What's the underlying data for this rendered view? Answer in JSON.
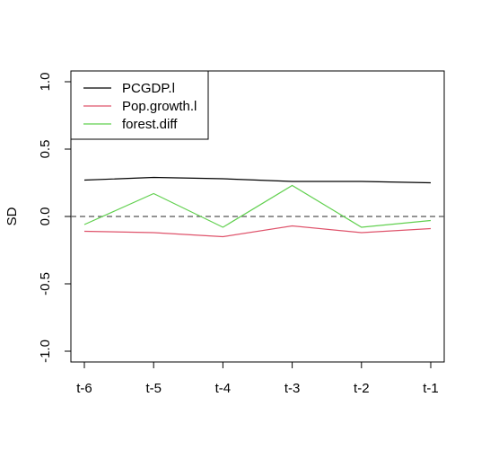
{
  "chart_data": {
    "type": "line",
    "title": "",
    "xlabel": "",
    "ylabel": "SD",
    "categories": [
      "t-6",
      "t-5",
      "t-4",
      "t-3",
      "t-2",
      "t-1"
    ],
    "ylim": [
      -1.08,
      1.08
    ],
    "yticks": [
      "-1.0",
      "-0.5",
      "0.0",
      "0.5",
      "1.0"
    ],
    "ytick_values": [
      -1.0,
      -0.5,
      0.0,
      0.5,
      1.0
    ],
    "reference_line": {
      "y": 0.0,
      "style": "dashed",
      "color": "#555555"
    },
    "grid": false,
    "legend_position": "top-left",
    "series": [
      {
        "name": "PCGDP.l",
        "color": "#000000",
        "values": [
          0.27,
          0.29,
          0.28,
          0.26,
          0.26,
          0.25
        ]
      },
      {
        "name": "Pop.growth.l",
        "color": "#df536b",
        "values": [
          -0.11,
          -0.12,
          -0.15,
          -0.07,
          -0.12,
          -0.09
        ]
      },
      {
        "name": "forest.diff",
        "color": "#61d04f",
        "values": [
          -0.06,
          0.17,
          -0.08,
          0.23,
          -0.08,
          -0.03
        ]
      }
    ]
  }
}
